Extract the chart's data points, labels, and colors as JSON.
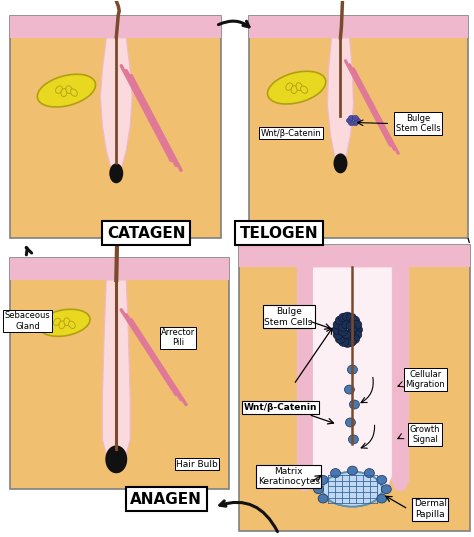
{
  "bg_color": "#ffffff",
  "skin_orange": "#F0C070",
  "skin_pink": "#F0B8CC",
  "skin_light_pink": "#FADADD",
  "skin_very_light": "#FDF0F4",
  "hair_brown": "#7B4A2A",
  "hair_pink1": "#E07898",
  "hair_pink2": "#D05878",
  "sebaceous_yellow": "#E8D820",
  "sebaceous_outline": "#B0A010",
  "bulb_dark": "#111111",
  "stem_dark_blue": "#1C3058",
  "migration_blue": "#4878B0",
  "light_blue_dp": "#C0D8F0",
  "grid_blue": "#3060A0",
  "arrow_color": "#111111",
  "label_catagen": "CATAGEN",
  "label_telogen": "TELOGEN",
  "label_anagen": "ANAGEN",
  "label_wnt": "Wnt/β-Catenin",
  "label_bulge": "Bulge\nStem Cells",
  "label_sebaceous": "Sebaceous\nGland",
  "label_arrector": "Arrector\nPili",
  "label_hairbulb": "Hair Bulb",
  "label_cellular": "Cellular\nMigration",
  "label_growth": "Growth\nSignal",
  "label_matrix": "Matrix\nKeratinocytes",
  "label_dermal": "Dermal\nPapilla",
  "label_wnt2": "Wnt/β-Catenin",
  "label_bulge2": "Bulge\nStem Cells"
}
